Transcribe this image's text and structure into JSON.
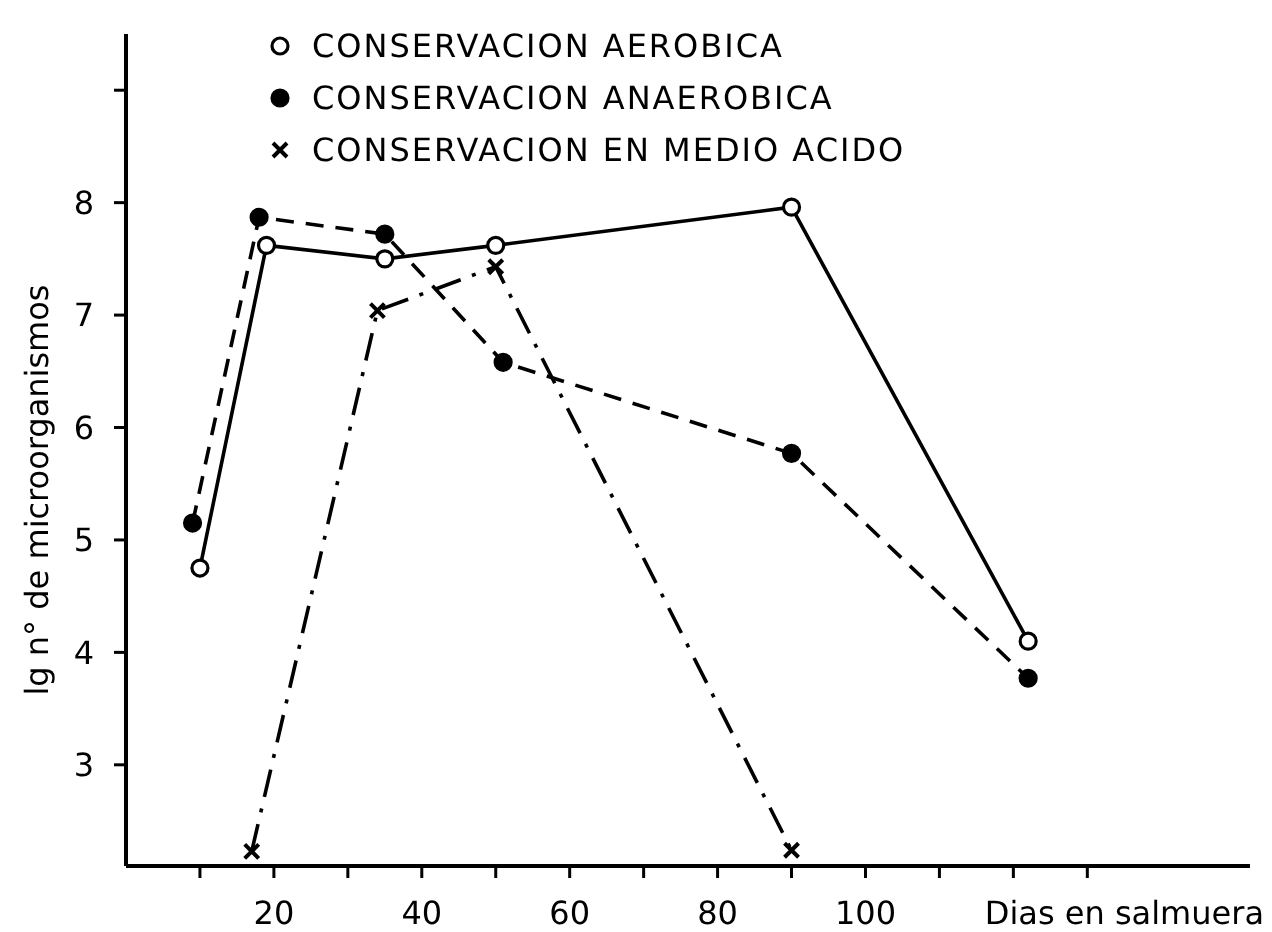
{
  "chart_data": {
    "type": "line",
    "xlabel": "Dias en salmuera",
    "ylabel": "lg n° de microorganismos",
    "xlim": [
      0,
      152
    ],
    "xticks": [
      {
        "value": 10,
        "label": null
      },
      20,
      {
        "value": 30,
        "label": null
      },
      40,
      {
        "value": 50,
        "label": null
      },
      60,
      {
        "value": 70,
        "label": null
      },
      80,
      {
        "value": 90,
        "label": null
      },
      100,
      {
        "value": 110,
        "label": null
      },
      {
        "value": 120,
        "label": null
      },
      {
        "value": 130,
        "label": null
      }
    ],
    "ylim": [
      2.1,
      9.5
    ],
    "yticks": [
      3,
      4,
      5,
      6,
      7,
      8,
      {
        "value": 9,
        "label": null
      }
    ],
    "grid": false,
    "legend": "top",
    "series": [
      {
        "name": "CONSERVACION AEROBICA",
        "color": "#000000",
        "marker": "circle",
        "line_style": "solid",
        "x": [
          10,
          19,
          35,
          50,
          90,
          122
        ],
        "values": [
          4.75,
          7.62,
          7.5,
          7.62,
          7.96,
          4.1
        ]
      },
      {
        "name": "CONSERVACION ANAEROBICA",
        "color": "#000000",
        "marker": "circle",
        "line_style": "dashed",
        "x": [
          9,
          18,
          35,
          51,
          90,
          122
        ],
        "values": [
          5.15,
          7.87,
          7.72,
          6.58,
          5.77,
          3.77
        ]
      },
      {
        "name": "CONSERVACION EN MEDIO ACIDO",
        "color": "#000000",
        "marker": "cross",
        "line_style": "dashdot",
        "x": [
          17,
          34,
          50,
          90
        ],
        "values": [
          2.23,
          7.04,
          7.43,
          2.24
        ]
      }
    ]
  }
}
